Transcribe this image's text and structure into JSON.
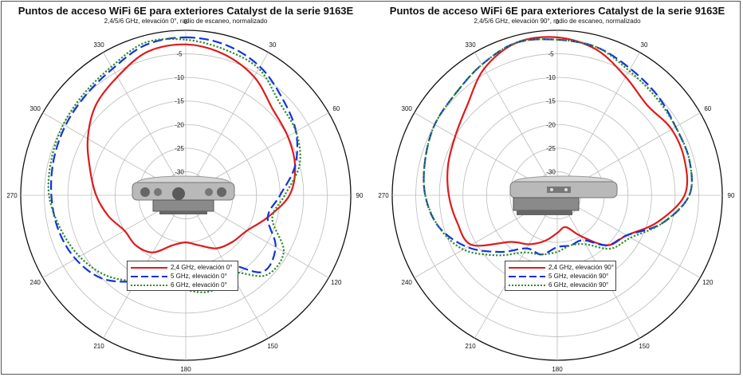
{
  "chart_data": [
    {
      "type": "polar-line",
      "title": "Puntos de acceso WiFi 6E para exteriores Catalyst de la serie 9163E",
      "subtitle": "2,4/5/6 GHz, elevación 0°, radio de escaneo, normalizado",
      "angle_ticks": [
        "0",
        "30",
        "60",
        "90",
        "120",
        "150",
        "180",
        "210",
        "240",
        "270",
        "300",
        "330"
      ],
      "radial_ticks": [
        "-5",
        "-10",
        "-15",
        "-20",
        "-25",
        "-30"
      ],
      "radial_range_db": [
        -35,
        0
      ],
      "legend_placement": "bottom-center",
      "series": [
        {
          "name": "2,4 GHz, elevación 0°",
          "color": "#e01a1a",
          "style": "solid",
          "angles": [
            0,
            15,
            30,
            45,
            60,
            75,
            90,
            105,
            120,
            135,
            150,
            165,
            180,
            195,
            210,
            225,
            240,
            255,
            270,
            285,
            300,
            315,
            330,
            345
          ],
          "values": [
            -3,
            -4,
            -6,
            -9,
            -10,
            -11,
            -13,
            -17,
            -20,
            -21,
            -22,
            -24,
            -25,
            -24,
            -21,
            -20,
            -20,
            -18,
            -16,
            -14,
            -11,
            -8,
            -6,
            -3.5
          ]
        },
        {
          "name": "5 GHz, elevación 0°",
          "color": "#1133dd",
          "style": "dashed",
          "angles": [
            0,
            15,
            30,
            45,
            60,
            75,
            90,
            105,
            120,
            135,
            150,
            165,
            180,
            195,
            210,
            225,
            240,
            255,
            270,
            285,
            300,
            315,
            330,
            345
          ],
          "values": [
            -1.5,
            -2,
            -3.5,
            -6,
            -8,
            -11,
            -15,
            -17,
            -13,
            -12,
            -18,
            -15,
            -17,
            -18,
            -14,
            -10,
            -8,
            -7,
            -6.5,
            -6,
            -5.5,
            -5,
            -4,
            -2
          ]
        },
        {
          "name": "6 GHz, elevación 0°",
          "color": "#2e8b2e",
          "style": "dotted",
          "angles": [
            0,
            15,
            30,
            45,
            60,
            75,
            90,
            105,
            120,
            135,
            150,
            165,
            180,
            195,
            210,
            225,
            240,
            255,
            270,
            285,
            300,
            315,
            330,
            345
          ],
          "values": [
            -2,
            -3,
            -4,
            -7,
            -8,
            -10,
            -14,
            -16,
            -11,
            -11,
            -16,
            -14,
            -15,
            -17,
            -14,
            -11,
            -9,
            -7.5,
            -6,
            -5.5,
            -5,
            -4.5,
            -3.5,
            -1.5
          ]
        }
      ]
    },
    {
      "type": "polar-line",
      "title": "Puntos de acceso WiFi 6E para exteriores Catalyst de la serie 9163E",
      "subtitle": "2,4/5/6 GHz, elevación 90°, radio de escaneo, normalizado",
      "angle_ticks": [
        "0",
        "30",
        "60",
        "90",
        "120",
        "150",
        "180",
        "210",
        "240",
        "270",
        "300",
        "330"
      ],
      "radial_ticks": [
        "-5",
        "-10",
        "-15",
        "-20",
        "-25",
        "-30"
      ],
      "radial_range_db": [
        -35,
        0
      ],
      "legend_placement": "bottom-center",
      "series": [
        {
          "name": "2,4 GHz, elevación 90°",
          "color": "#e01a1a",
          "style": "solid",
          "angles": [
            0,
            15,
            30,
            45,
            60,
            75,
            90,
            105,
            120,
            135,
            150,
            165,
            180,
            195,
            210,
            225,
            240,
            255,
            270,
            285,
            300,
            315,
            330,
            345
          ],
          "values": [
            -1.5,
            -3,
            -6,
            -8,
            -7,
            -7,
            -8,
            -13,
            -18,
            -20,
            -25,
            -28,
            -27,
            -25,
            -23,
            -21,
            -14,
            -13,
            -12,
            -11,
            -10,
            -8,
            -4,
            -1.5
          ]
        },
        {
          "name": "5 GHz, elevación 90°",
          "color": "#1133dd",
          "style": "dashed",
          "angles": [
            0,
            15,
            30,
            45,
            60,
            75,
            90,
            105,
            120,
            135,
            150,
            165,
            180,
            195,
            210,
            225,
            240,
            255,
            270,
            285,
            300,
            315,
            330,
            345
          ],
          "values": [
            -2,
            -2.5,
            -4,
            -5,
            -6,
            -6,
            -7,
            -12,
            -18,
            -20,
            -24,
            -24,
            -24,
            -22,
            -22,
            -18,
            -13,
            -9,
            -7,
            -6,
            -5,
            -4.5,
            -3,
            -1.5
          ]
        },
        {
          "name": "6 GHz, elevación 90°",
          "color": "#2e8b2e",
          "style": "dotted",
          "angles": [
            0,
            15,
            30,
            45,
            60,
            75,
            90,
            105,
            120,
            135,
            150,
            165,
            180,
            195,
            210,
            225,
            240,
            255,
            270,
            285,
            300,
            315,
            330,
            345
          ],
          "values": [
            -2,
            -2.5,
            -4.5,
            -5.5,
            -6,
            -6,
            -7,
            -12,
            -17,
            -19,
            -23,
            -24,
            -23,
            -22,
            -21,
            -17,
            -12,
            -9,
            -7,
            -6,
            -5,
            -4.5,
            -3,
            -1.5
          ]
        }
      ]
    }
  ]
}
